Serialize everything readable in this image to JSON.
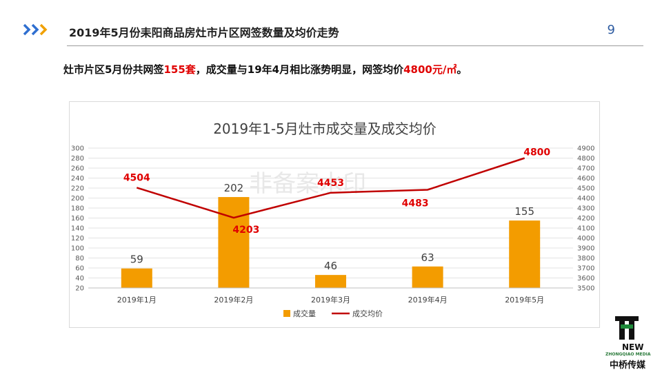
{
  "header": {
    "title": "2019年5月份耒阳商品房灶市片区网签数量及均价走势",
    "page_number": "9"
  },
  "summary": {
    "part1": "灶市片区5月份共网签",
    "count": "155套",
    "part2": "，成交量与19年4月相比涨势明显，网签均价",
    "price": "4800元/㎡",
    "part3": "。"
  },
  "chart_data": {
    "type": "bar",
    "title": "2019年1-5月灶市成交量及成交均价",
    "categories": [
      "2019年1月",
      "2019年2月",
      "2019年3月",
      "2019年4月",
      "2019年5月"
    ],
    "series": [
      {
        "name": "成交量",
        "type": "bar",
        "axis": "left",
        "values": [
          59,
          202,
          46,
          63,
          155
        ]
      },
      {
        "name": "成交均价",
        "type": "line",
        "axis": "right",
        "values": [
          4504,
          4203,
          4453,
          4483,
          4800
        ]
      }
    ],
    "y_left": {
      "min": 20,
      "max": 300,
      "ticks": [
        "20",
        "40",
        "60",
        "80",
        "100",
        "120",
        "140",
        "160",
        "180",
        "200",
        "220",
        "240",
        "260",
        "280",
        "300"
      ]
    },
    "y_right": {
      "min": 3500,
      "max": 4900,
      "ticks": [
        "3500",
        "3600",
        "3700",
        "3800",
        "3900",
        "4000",
        "4100",
        "4200",
        "4300",
        "4400",
        "4500",
        "4600",
        "4700",
        "4800",
        "4900"
      ]
    },
    "legend": "bottom",
    "grid": true,
    "colors": {
      "bar": "#f39c00",
      "line": "#c00000",
      "line_label": "#e00000",
      "bar_label": "#404040"
    }
  },
  "watermark": {
    "text": "非备案水印"
  },
  "logo": {
    "new": "NEW",
    "sub": "ZHONGQIAO MEDIA",
    "brand": "中桥传媒"
  },
  "icons": [
    "chevron-right-icon",
    "company-logo-icon"
  ]
}
